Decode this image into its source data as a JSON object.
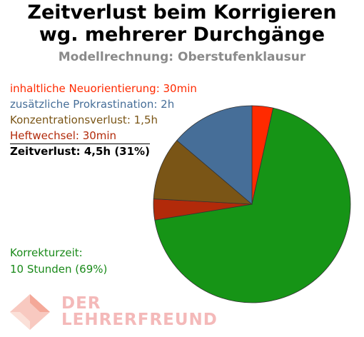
{
  "title_line1": "Zeitverlust beim Korrigieren",
  "title_line2": "wg. mehrerer Durchgänge",
  "subtitle": "Modellrechnung: Oberstufenklausur",
  "legend": [
    {
      "label": "inhaltliche Neuorientierung: 30min",
      "color": "#ff2a00"
    },
    {
      "label": "zusätzliche Prokrastination: 2h",
      "color": "#466e98"
    },
    {
      "label": "Konzentrationsverlust: 1,5h",
      "color": "#7a5516"
    },
    {
      "label": "Heftwechsel: 30min",
      "color": "#b22a0a"
    }
  ],
  "total_label": "Zeitverlust: 4,5h (31%)",
  "correction_line1": "Korrekturzeit:",
  "correction_line2": "10 Stunden (69%)",
  "logo_line1": "DER",
  "logo_line2": "LEHRERFREUND",
  "chart_data": {
    "type": "pie",
    "unit": "minutes",
    "slices": [
      {
        "label": "inhaltliche Neuorientierung",
        "value": 30,
        "color": "#ff2a00"
      },
      {
        "label": "Korrekturzeit",
        "value": 600,
        "color": "#169416"
      },
      {
        "label": "Heftwechsel",
        "value": 30,
        "color": "#b22a0a"
      },
      {
        "label": "Konzentrationsverlust",
        "value": 90,
        "color": "#7a5516"
      },
      {
        "label": "zusätzliche Prokrastination",
        "value": 120,
        "color": "#466e98"
      }
    ]
  }
}
